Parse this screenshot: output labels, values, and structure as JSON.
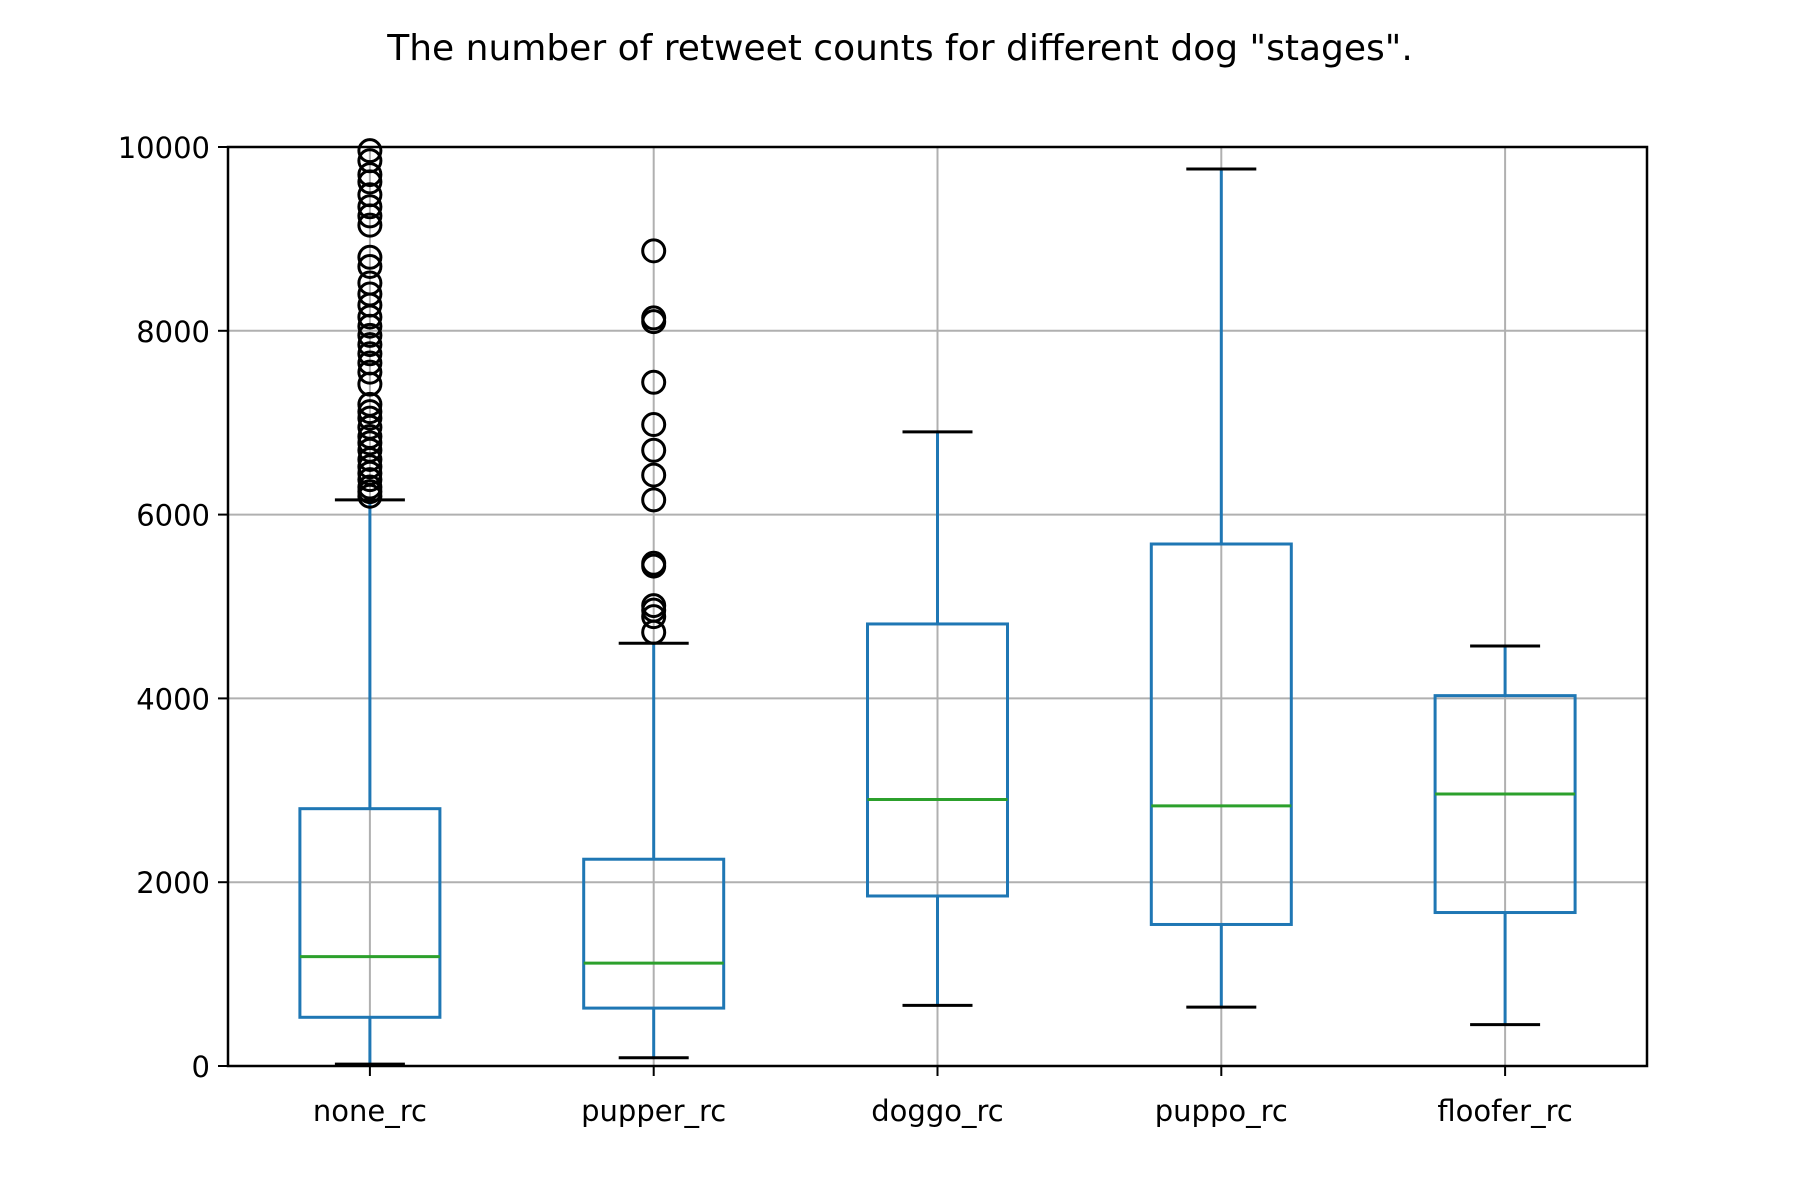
{
  "chart_data": {
    "type": "box",
    "title": "The number of retweet counts for different dog \"stages\".",
    "xlabel": "",
    "ylabel": "",
    "ylim": [
      0,
      10000
    ],
    "y_ticks": [
      "0",
      "2000",
      "4000",
      "6000",
      "8000",
      "10000"
    ],
    "grid": true,
    "colors": {
      "box": "#1f77b4",
      "median": "#2ca02c",
      "whisker_cap": "#000000",
      "flier": "#000000",
      "grid": "#b0b0b0"
    },
    "categories": [
      "none_rc",
      "pupper_rc",
      "doggo_rc",
      "puppo_rc",
      "floofer_rc"
    ],
    "boxes": [
      {
        "name": "none_rc",
        "whisker_low": 20,
        "q1": 530,
        "median": 1190,
        "q3": 2800,
        "whisker_high": 6160,
        "outliers": [
          6200,
          6250,
          6300,
          6380,
          6450,
          6520,
          6600,
          6700,
          6780,
          6850,
          6950,
          7050,
          7120,
          7200,
          7420,
          7550,
          7650,
          7750,
          7850,
          7950,
          8050,
          8150,
          8280,
          8400,
          8520,
          8700,
          8800,
          9150,
          9250,
          9350,
          9480,
          9620,
          9700,
          9850,
          9960
        ]
      },
      {
        "name": "pupper_rc",
        "whisker_low": 90,
        "q1": 630,
        "median": 1120,
        "q3": 2250,
        "whisker_high": 4600,
        "outliers": [
          4720,
          4890,
          4960,
          5010,
          5440,
          5470,
          6160,
          6430,
          6700,
          6980,
          7440,
          8100,
          8140,
          8870
        ]
      },
      {
        "name": "doggo_rc",
        "whisker_low": 660,
        "q1": 1850,
        "median": 2900,
        "q3": 4810,
        "whisker_high": 6900,
        "outliers": []
      },
      {
        "name": "puppo_rc",
        "whisker_low": 640,
        "q1": 1540,
        "median": 2830,
        "q3": 5680,
        "whisker_high": 9760,
        "outliers": []
      },
      {
        "name": "floofer_rc",
        "whisker_low": 450,
        "q1": 1670,
        "median": 2960,
        "q3": 4030,
        "whisker_high": 4570,
        "outliers": []
      }
    ]
  }
}
